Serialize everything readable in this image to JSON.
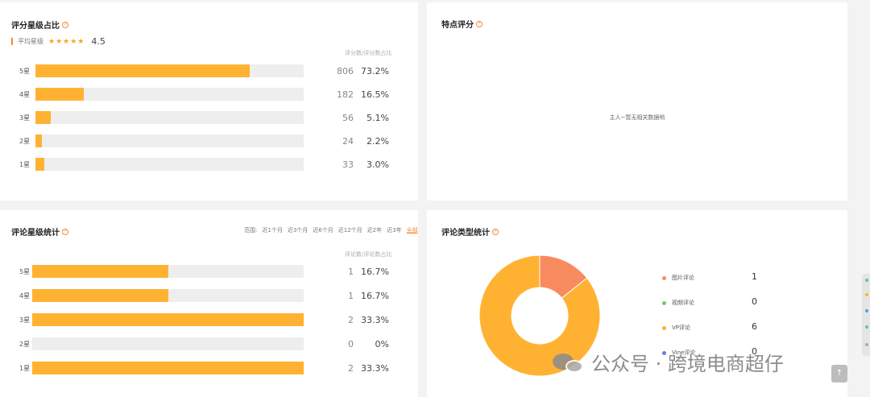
{
  "rating_ratio": {
    "title": "评分星级占比",
    "avg_label": "平均星级",
    "stars": "★★★★★",
    "avg_value": "4.5",
    "col_header": "评分数/评分数占比",
    "rows": [
      {
        "label": "5星",
        "count": "806",
        "pct": "73.2%",
        "fill": 0.8
      },
      {
        "label": "4星",
        "count": "182",
        "pct": "16.5%",
        "fill": 0.18
      },
      {
        "label": "3星",
        "count": "56",
        "pct": "5.1%",
        "fill": 0.056
      },
      {
        "label": "2星",
        "count": "24",
        "pct": "2.2%",
        "fill": 0.024
      },
      {
        "label": "1星",
        "count": "33",
        "pct": "3.0%",
        "fill": 0.033
      }
    ]
  },
  "feature_score": {
    "title": "特点评分",
    "empty_msg": "主人~暂无相关数据哟"
  },
  "review_star_stats": {
    "title": "评论星级统计",
    "range_label": "范围:",
    "range_options": [
      "近1个月",
      "近3个月",
      "近6个月",
      "近12个月",
      "近2年",
      "近3年",
      "全部"
    ],
    "active_range": "全部",
    "col_header": "评论数/评论数占比",
    "rows": [
      {
        "label": "5星",
        "count": "1",
        "pct": "16.7%",
        "fill": 0.5
      },
      {
        "label": "4星",
        "count": "1",
        "pct": "16.7%",
        "fill": 0.5
      },
      {
        "label": "3星",
        "count": "2",
        "pct": "33.3%",
        "fill": 1.0
      },
      {
        "label": "2星",
        "count": "0",
        "pct": "0%",
        "fill": 0.0
      },
      {
        "label": "1星",
        "count": "2",
        "pct": "33.3%",
        "fill": 1.0
      }
    ]
  },
  "review_type_stats": {
    "title": "评论类型统计",
    "legend": [
      {
        "label": "图片评论",
        "value": "1",
        "color": "#f88b5e"
      },
      {
        "label": "视频评论",
        "value": "0",
        "color": "#7cc36a"
      },
      {
        "label": "VP评论",
        "value": "6",
        "color": "#ffb232"
      },
      {
        "label": "Vine评论",
        "value": "0",
        "color": "#6a7fd9"
      }
    ]
  },
  "chart_data": {
    "type": "pie",
    "categories": [
      "图片评论",
      "视频评论",
      "VP评论",
      "Vine评论"
    ],
    "values": [
      1,
      0,
      6,
      0
    ],
    "colors": [
      "#f88b5e",
      "#7cc36a",
      "#ffb232",
      "#6a7fd9"
    ],
    "donut": true
  },
  "watermark": {
    "text": "公众号 · 跨境电商超仔"
  },
  "scroll_top_icon": "arrow-up-icon",
  "accent_color": "#ffb232"
}
